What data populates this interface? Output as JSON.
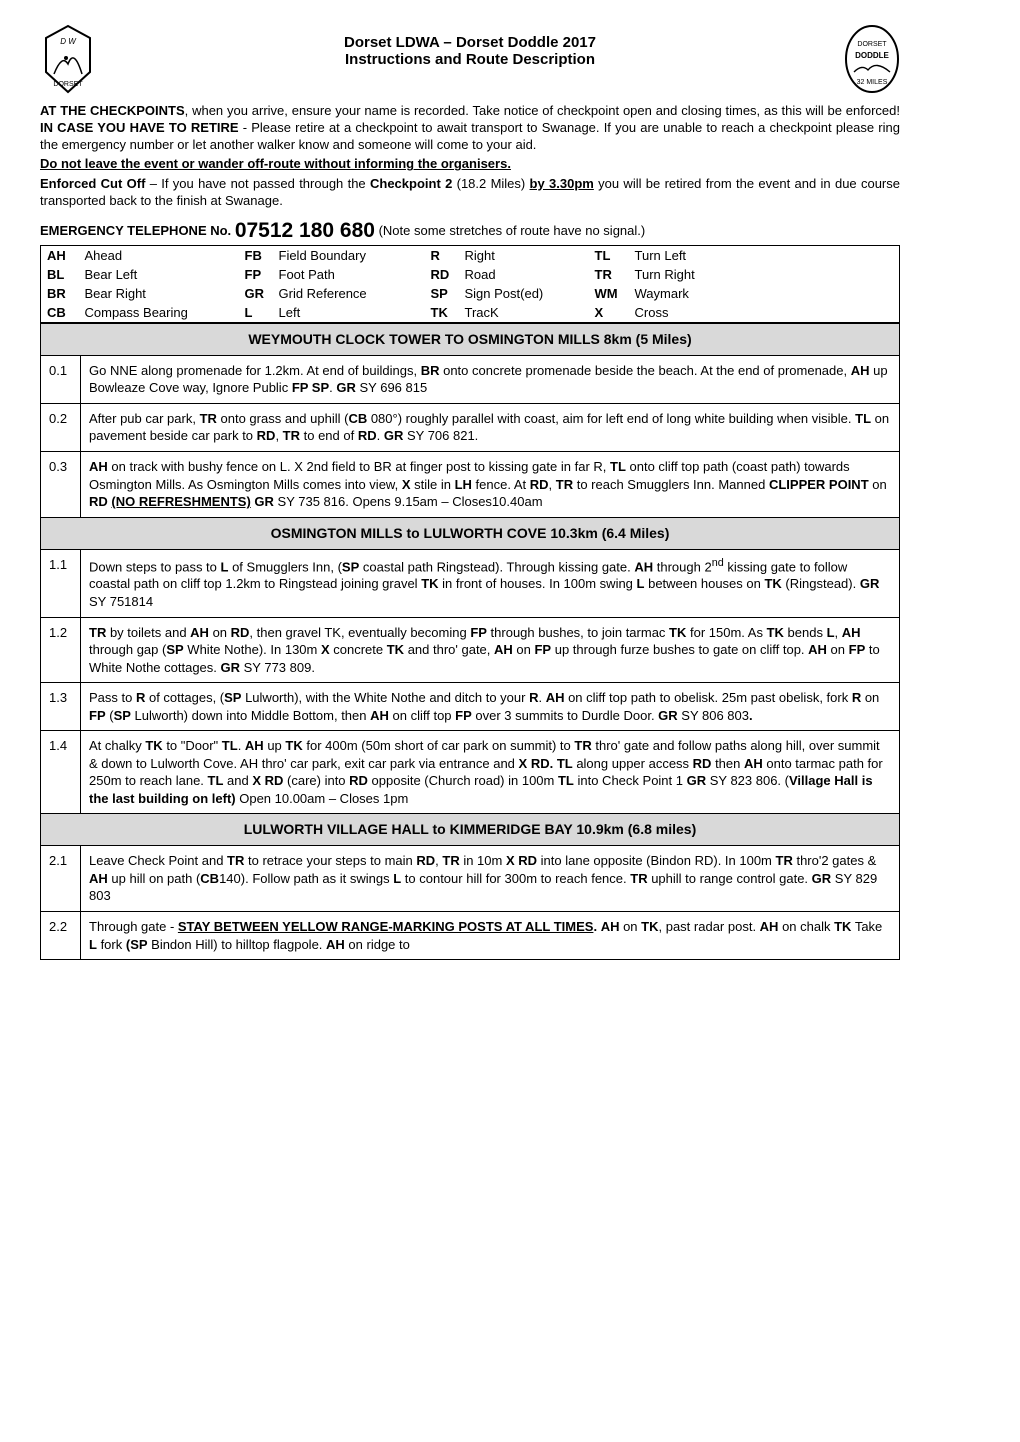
{
  "title": {
    "line1": "Dorset LDWA – Dorset Doddle 2017",
    "line2": "Instructions and Route Description"
  },
  "intro": {
    "p1_leadBold": "AT THE CHECKPOINTS",
    "p1_afterLead": ", when you arrive, ensure your name is recorded.  Take notice of checkpoint open and closing times, as this will be enforced! ",
    "p1_retireBold": "IN CASE YOU HAVE TO RETIRE",
    "p1_afterRetire": " - Please retire at a checkpoint to await transport to Swanage. If you are unable to reach a checkpoint please ring the emergency number or let another walker know and someone will come to your aid.",
    "p2_bold": "Do not leave the event or wander off-route without informing the organisers.",
    "enforced_lead": "Enforced Cut Off",
    "enforced_mid": " – If you have not passed through the ",
    "enforced_cp": "Checkpoint 2",
    "enforced_mid2": " (18.2 Miles) ",
    "enforced_time": "by 3.30pm",
    "enforced_tail": " you will be retired from the event and in due course transported back to the finish at Swanage."
  },
  "emergency": {
    "label": "EMERGENCY TELEPHONE No.",
    "tel": "07512 180 680",
    "note": "(Note some stretches of route have no signal.)"
  },
  "abbr": {
    "rows": [
      [
        "AH",
        "Ahead",
        "FB",
        "Field   Boundary",
        "R",
        "Right",
        "TL",
        "Turn Left"
      ],
      [
        "BL",
        "Bear Left",
        "FP",
        "Foot Path",
        "RD",
        "Road",
        "TR",
        "Turn Right"
      ],
      [
        "BR",
        "Bear Right",
        "GR",
        "Grid Reference",
        "SP",
        "Sign Post(ed)",
        "WM",
        "Waymark"
      ],
      [
        "CB",
        "Compass Bearing",
        "L",
        "Left",
        "TK",
        "TracK",
        "X",
        "Cross"
      ]
    ]
  },
  "sections": [
    {
      "heading": "WEYMOUTH CLOCK TOWER TO OSMINGTON MILLS 8km (5 Miles)",
      "rows": [
        {
          "km": "0.1",
          "html": "Go NNE along promenade for 1.2km. At end of buildings, <span class='b'>BR</span> onto concrete promenade beside the beach. At the end of promenade, <span class='b'>AH</span> up Bowleaze Cove way, Ignore Public <span class='b'>FP SP</span>. <span class='b'>GR</span> SY 696 815"
        },
        {
          "km": "0.2",
          "html": "After pub car park, <span class='b'>TR</span> onto grass and uphill (<span class='b'>CB</span> 080°) roughly parallel with coast, aim for left end of long white building when visible. <span class='b'>TL</span> on pavement beside car park to <span class='b'>RD</span>, <span class='b'>TR</span> to end of <span class='b'>RD</span>. <span class='b'>GR</span> SY 706 821."
        },
        {
          "km": "0.3",
          "html": "<span class='b'>AH</span> on track with bushy fence on L. X 2nd field to BR at finger post to kissing gate in far R, <span class='b'>TL</span> onto cliff top path (coast path) towards Osmington Mills. As Osmington Mills comes into view, <span class='b'>X</span> stile in <span class='b'>LH</span> fence. At <span class='b'>RD</span>, <span class='b'>TR</span> to reach Smugglers Inn. Manned <span class='b'>CLIPPER POINT</span> on <span class='b'>RD</span> <span class='bu'>(NO REFRESHMENTS)</span>  <span class='b'>GR</span> SY 735 816.  Opens 9.15am – Closes10.40am"
        }
      ]
    },
    {
      "heading": "OSMINGTON MILLS to LULWORTH COVE 10.3km (6.4 Miles)",
      "rows": [
        {
          "km": "1.1",
          "html": "Down steps to pass to <span class='b'>L</span> of Smugglers Inn, (<span class='b'>SP</span> coastal path Ringstead). Through kissing gate. <span class='b'>AH</span> through 2<sup>nd</sup> kissing gate to follow coastal path on cliff top 1.2km to Ringstead joining gravel <span class='b'>TK</span> in front of houses. In 100m swing <span class='b'>L</span> between houses on <span class='b'>TK</span> (Ringstead). <span class='b'>GR</span> SY 751814"
        },
        {
          "km": "1.2",
          "html": "<span class='b'>TR</span> by toilets and <span class='b'>AH</span> on <span class='b'>RD</span>, then gravel TK, eventually becoming <span class='b'>FP</span> through bushes, to join tarmac <span class='b'>TK</span> for 150m. As <span class='b'>TK</span> bends <span class='b'>L</span>, <span class='b'>AH</span> through gap (<span class='b'>SP</span> White Nothe). In 130m <span class='b'>X</span> concrete <span class='b'>TK</span> and thro' gate, <span class='b'>AH</span> on <span class='b'>FP</span> up through furze bushes to gate on cliff top. <span class='b'>AH</span> on <span class='b'>FP</span> to White Nothe cottages. <span class='b'>GR</span> SY 773 809."
        },
        {
          "km": "1.3",
          "html": "Pass to <span class='b'>R</span> of cottages, (<span class='b'>SP</span> Lulworth), with the White Nothe and ditch to your <span class='b'>R</span>. <span class='b'>AH</span> on cliff top path to obelisk. 25m past obelisk, fork <span class='b'>R</span> on <span class='b'>FP</span> (<span class='b'>SP</span> Lulworth) down into Middle Bottom, then <span class='b'>AH</span> on cliff top <span class='b'>FP</span> over 3 summits to Durdle Door. <span class='b'>GR</span> SY 806 803<span class='b'>.</span>"
        },
        {
          "km": "1.4",
          "html": "At chalky <span class='b'>TK</span> to \"Door\" <span class='b'>TL</span>. <span class='b'>AH</span> up <span class='b'>TK</span> for 400m (50m short of car park on summit) to <span class='b'>TR</span> thro' gate and follow paths along hill, over summit & down to Lulworth Cove. AH thro' car park, exit car park via entrance and <span class='b'>X RD. TL</span> along upper access <span class='b'>RD</span> then <span class='b'>AH</span> onto tarmac path for 250m to reach lane. <span class='b'>TL</span> and <span class='b'>X RD</span> (care) into <span class='b'>RD</span> opposite (Church road) in 100m <span class='b'>TL</span> into Check Point 1 <span class='b'>GR</span> SY 823 806.  (<span class='b'>Village Hall is the last building on left)</span> Open 10.00am – Closes 1pm"
        }
      ]
    },
    {
      "heading": "LULWORTH VILLAGE HALL to KIMMERIDGE BAY 10.9km (6.8 miles)",
      "rows": [
        {
          "km": "2.1",
          "html": "Leave Check Point and <span class='b'>TR</span> to retrace your steps to main <span class='b'>RD</span>, <span class='b'>TR</span> in 10m <span class='b'>X RD</span> into lane opposite (Bindon RD). In 100m <span class='b'>TR</span> thro'2 gates & <span class='b'>AH</span> up hill on path (<span class='b'>CB</span>140). Follow path as it swings <span class='b'>L</span> to contour hill for 300m to reach fence. <span class='b'>TR</span> uphill to range control gate. <span class='b'>GR</span> SY 829 803"
        },
        {
          "km": "2.2",
          "html": "Through gate - <span class='bu'>STAY BETWEEN YELLOW RANGE-MARKING POSTS AT ALL TIMES</span><span class='b'>.</span>  <span class='b'>AH</span> on <span class='b'>TK</span>, past radar post. <span class='b'>AH</span> on chalk <span class='b'>TK</span> Take <span class='b'>L</span> fork <span class='b'>(SP</span> Bindon Hill) to hilltop flagpole. <span class='b'>AH</span> on ridge to"
        }
      ]
    }
  ]
}
